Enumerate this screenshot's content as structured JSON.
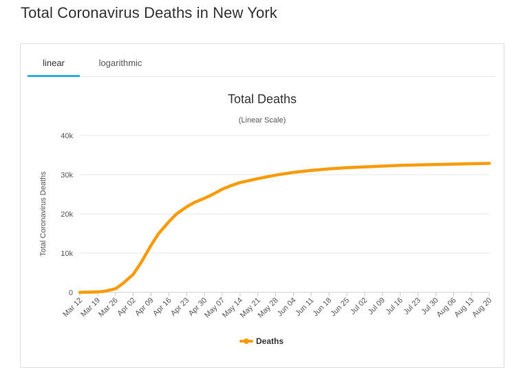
{
  "page": {
    "title": "Total Coronavirus Deaths in New York"
  },
  "tabs": [
    {
      "label": "linear",
      "active": true
    },
    {
      "label": "logarithmic",
      "active": false
    }
  ],
  "colors": {
    "series": "#f89c0e",
    "tab_accent": "#2bb0d8",
    "grid": "#e6e6e6"
  },
  "chart_data": {
    "type": "line",
    "title": "Total Deaths",
    "subtitle": "(Linear Scale)",
    "ylabel": "Total Coronavirus Deaths",
    "xlabel": "",
    "ylim": [
      0,
      40000
    ],
    "yticks": [
      0,
      10000,
      20000,
      30000,
      40000
    ],
    "ytick_labels": [
      "0",
      "10k",
      "20k",
      "30k",
      "40k"
    ],
    "x_tick_labels": [
      "Mar 12",
      "Mar 19",
      "Mar 26",
      "Apr 02",
      "Apr 09",
      "Apr 16",
      "Apr 23",
      "Apr 30",
      "May 07",
      "May 14",
      "May 21",
      "May 28",
      "Jun 04",
      "Jun 11",
      "Jun 18",
      "Jun 25",
      "Jul 02",
      "Jul 09",
      "Jul 16",
      "Jul 23",
      "Jul 30",
      "Aug 06",
      "Aug 13",
      "Aug 20"
    ],
    "legend": "bottom-center",
    "grid": true,
    "series": [
      {
        "name": "Deaths",
        "x": [
          "Mar 12",
          "Mar 19",
          "Mar 22",
          "Mar 26",
          "Mar 29",
          "Apr 02",
          "Apr 05",
          "Apr 09",
          "Apr 12",
          "Apr 16",
          "Apr 19",
          "Apr 23",
          "Apr 26",
          "Apr 30",
          "May 03",
          "May 07",
          "May 10",
          "May 14",
          "May 21",
          "May 28",
          "Jun 04",
          "Jun 11",
          "Jun 18",
          "Jun 25",
          "Jul 02",
          "Jul 09",
          "Jul 16",
          "Jul 23",
          "Jul 30",
          "Aug 06",
          "Aug 13",
          "Aug 20"
        ],
        "values": [
          0,
          100,
          300,
          900,
          2300,
          4600,
          7500,
          12000,
          15000,
          18000,
          20000,
          21800,
          22900,
          24000,
          24900,
          26300,
          27100,
          28000,
          29000,
          29900,
          30600,
          31100,
          31500,
          31800,
          32000,
          32200,
          32400,
          32500,
          32600,
          32700,
          32800,
          32900
        ]
      }
    ]
  }
}
